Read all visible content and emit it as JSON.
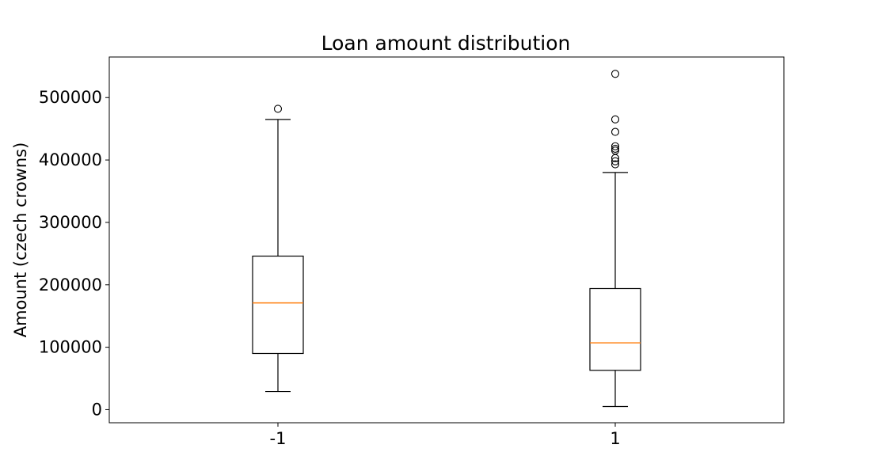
{
  "chart_data": {
    "type": "box",
    "title": "Loan amount distribution",
    "xlabel": "",
    "ylabel": "Amount (czech crowns)",
    "ylim": [
      -21000,
      565000
    ],
    "yticks": [
      0,
      100000,
      200000,
      300000,
      400000,
      500000
    ],
    "ytick_labels": [
      "0",
      "100000",
      "200000",
      "300000",
      "400000",
      "500000"
    ],
    "grid": false,
    "colors": {
      "box": "#000000",
      "median": "#ff7f0e",
      "outlier": "#000000"
    },
    "categories": [
      "-1",
      "1"
    ],
    "boxes": [
      {
        "category": "-1",
        "whisker_low": 29000,
        "q1": 90000,
        "median": 171000,
        "q3": 246000,
        "whisker_high": 465000,
        "outliers": [
          482000
        ]
      },
      {
        "category": "1",
        "whisker_low": 5000,
        "q1": 63000,
        "median": 107000,
        "q3": 194000,
        "whisker_high": 380000,
        "outliers": [
          538000,
          465000,
          445000,
          422000,
          418000,
          415000,
          403000,
          398000,
          393000
        ]
      }
    ]
  }
}
